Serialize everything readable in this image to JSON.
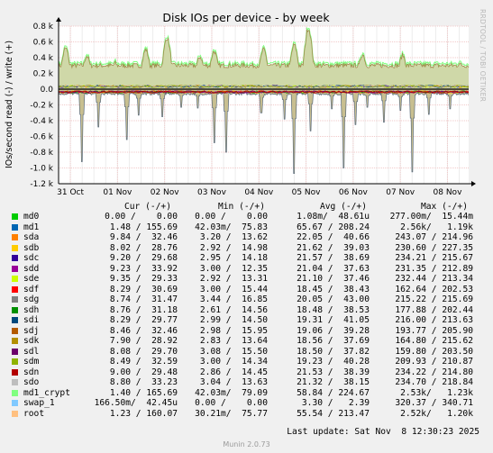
{
  "chart_data": {
    "type": "line",
    "title": "Disk IOs per device - by week",
    "ylabel": "IOs/second read (-) / write (+)",
    "ylim": [
      -1200,
      800
    ],
    "yticks": [
      {
        "v": 800,
        "label": "0.8 k"
      },
      {
        "v": 600,
        "label": "0.6 k"
      },
      {
        "v": 400,
        "label": "0.4 k"
      },
      {
        "v": 200,
        "label": "0.2 k"
      },
      {
        "v": 0,
        "label": "0.0"
      },
      {
        "v": -200,
        "label": "-0.2 k"
      },
      {
        "v": -400,
        "label": "-0.4 k"
      },
      {
        "v": -600,
        "label": "-0.6 k"
      },
      {
        "v": -800,
        "label": "-0.8 k"
      },
      {
        "v": -1000,
        "label": "-1.0 k"
      },
      {
        "v": -1200,
        "label": "-1.2 k"
      }
    ],
    "xticks": [
      "31 Oct",
      "01 Nov",
      "02 Nov",
      "03 Nov",
      "04 Nov",
      "05 Nov",
      "06 Nov",
      "07 Nov",
      "08 Nov"
    ],
    "xrange_days": [
      0,
      8.7
    ],
    "xtick_offset_days": 0.25,
    "series_profile": {
      "write_baseline": 300,
      "read_baseline": -60,
      "write_peaks": [
        {
          "d": 0.15,
          "v": 520
        },
        {
          "d": 0.6,
          "v": 420
        },
        {
          "d": 1.2,
          "v": 330
        },
        {
          "d": 1.85,
          "v": 500
        },
        {
          "d": 2.3,
          "v": 650
        },
        {
          "d": 3.0,
          "v": 410
        },
        {
          "d": 3.3,
          "v": 480
        },
        {
          "d": 4.35,
          "v": 500
        },
        {
          "d": 5.0,
          "v": 560
        },
        {
          "d": 5.3,
          "v": 770
        },
        {
          "d": 6.45,
          "v": 440
        },
        {
          "d": 7.3,
          "v": 430
        },
        {
          "d": 8.5,
          "v": 330
        }
      ],
      "read_spikes": [
        {
          "d": 0.5,
          "v": -920
        },
        {
          "d": 0.85,
          "v": -480
        },
        {
          "d": 1.45,
          "v": -640
        },
        {
          "d": 1.7,
          "v": -330
        },
        {
          "d": 2.2,
          "v": -350
        },
        {
          "d": 2.6,
          "v": -230
        },
        {
          "d": 2.95,
          "v": -240
        },
        {
          "d": 3.3,
          "v": -680
        },
        {
          "d": 3.55,
          "v": -800
        },
        {
          "d": 4.3,
          "v": -300
        },
        {
          "d": 4.8,
          "v": -380
        },
        {
          "d": 5.0,
          "v": -1070
        },
        {
          "d": 5.35,
          "v": -530
        },
        {
          "d": 5.8,
          "v": -250
        },
        {
          "d": 6.05,
          "v": -1000
        },
        {
          "d": 6.3,
          "v": -450
        },
        {
          "d": 6.55,
          "v": -230
        },
        {
          "d": 6.9,
          "v": -420
        },
        {
          "d": 7.25,
          "v": -270
        },
        {
          "d": 7.5,
          "v": -1050
        },
        {
          "d": 7.85,
          "v": -320
        },
        {
          "d": 8.3,
          "v": -250
        }
      ]
    }
  },
  "legend": {
    "headers": {
      "cur": "Cur (-/+)",
      "min": "Min (-/+)",
      "avg": "Avg (-/+)",
      "max": "Max (-/+)"
    },
    "rows": [
      {
        "name": "md0",
        "color": "#00cc00",
        "cur": "0.00 /    0.00",
        "min": "0.00 /    0.00",
        "avg": "1.08m/  48.61u",
        "max": "277.00m/  15.44m"
      },
      {
        "name": "md1",
        "color": "#0066b3",
        "cur": "1.48 / 155.69",
        "min": "42.03m/  75.83",
        "avg": "65.67 / 208.24",
        "max": "2.56k/   1.19k"
      },
      {
        "name": "sda",
        "color": "#ff8000",
        "cur": "9.84 /  32.46",
        "min": "3.20 /  13.62",
        "avg": "22.05 /  40.66",
        "max": "243.07 / 214.96"
      },
      {
        "name": "sdb",
        "color": "#ffcc00",
        "cur": "8.02 /  28.76",
        "min": "2.92 /  14.98",
        "avg": "21.62 /  39.03",
        "max": "230.60 / 227.35"
      },
      {
        "name": "sdc",
        "color": "#330099",
        "cur": "9.20 /  29.68",
        "min": "2.95 /  14.18",
        "avg": "21.57 /  38.69",
        "max": "234.21 / 215.67"
      },
      {
        "name": "sdd",
        "color": "#990099",
        "cur": "9.23 /  33.92",
        "min": "3.00 /  12.35",
        "avg": "21.04 /  37.63",
        "max": "231.35 / 212.89"
      },
      {
        "name": "sde",
        "color": "#ccff00",
        "cur": "9.35 /  29.33",
        "min": "2.92 /  13.31",
        "avg": "21.10 /  37.46",
        "max": "232.44 / 213.34"
      },
      {
        "name": "sdf",
        "color": "#ff0000",
        "cur": "8.29 /  30.69",
        "min": "3.00 /  15.44",
        "avg": "18.45 /  38.43",
        "max": "162.64 / 202.53"
      },
      {
        "name": "sdg",
        "color": "#808080",
        "cur": "8.74 /  31.47",
        "min": "3.44 /  16.85",
        "avg": "20.05 /  43.00",
        "max": "215.22 / 215.69"
      },
      {
        "name": "sdh",
        "color": "#008f00",
        "cur": "8.76 /  31.18",
        "min": "2.61 /  14.56",
        "avg": "18.48 /  38.53",
        "max": "177.88 / 202.44"
      },
      {
        "name": "sdi",
        "color": "#00487d",
        "cur": "8.29 /  29.77",
        "min": "2.99 /  14.50",
        "avg": "19.31 /  41.05",
        "max": "216.00 / 213.63"
      },
      {
        "name": "sdj",
        "color": "#b35a00",
        "cur": "8.46 /  32.46",
        "min": "2.98 /  15.95",
        "avg": "19.06 /  39.28",
        "max": "193.77 / 205.90"
      },
      {
        "name": "sdk",
        "color": "#b38f00",
        "cur": "7.90 /  28.92",
        "min": "2.83 /  13.64",
        "avg": "18.56 /  37.69",
        "max": "164.80 / 215.62"
      },
      {
        "name": "sdl",
        "color": "#6b006b",
        "cur": "8.08 /  29.70",
        "min": "3.08 /  15.50",
        "avg": "18.50 /  37.82",
        "max": "159.80 / 203.50"
      },
      {
        "name": "sdm",
        "color": "#8fb300",
        "cur": "8.49 /  32.59",
        "min": "3.00 /  14.34",
        "avg": "19.23 /  40.28",
        "max": "209.93 / 210.87"
      },
      {
        "name": "sdn",
        "color": "#b30000",
        "cur": "9.00 /  29.48",
        "min": "2.86 /  14.45",
        "avg": "21.53 /  38.39",
        "max": "234.22 / 214.80"
      },
      {
        "name": "sdo",
        "color": "#bebebe",
        "cur": "8.80 /  33.23",
        "min": "3.04 /  13.63",
        "avg": "21.32 /  38.15",
        "max": "234.70 / 218.84"
      },
      {
        "name": "md1_crypt",
        "color": "#80ff80",
        "cur": "1.40 / 165.69",
        "min": "42.03m/  79.09",
        "avg": "58.84 / 224.67",
        "max": "2.53k/   1.23k"
      },
      {
        "name": "swap_1",
        "color": "#80c9ff",
        "cur": "166.50m/  42.45u",
        "min": "0.00 /    0.00",
        "avg": "3.30 /   2.39",
        "max": "320.37 / 340.71"
      },
      {
        "name": "root",
        "color": "#ffc080",
        "cur": "1.23 / 160.07",
        "min": "30.21m/  75.77",
        "avg": "55.54 / 213.47",
        "max": "2.52k/   1.20k"
      }
    ]
  },
  "last_update": "Last update: Sat Nov  8 12:30:23 2025",
  "footer": "Munin 2.0.73",
  "watermark": "RRDTOOL / TOBI OETIKER"
}
